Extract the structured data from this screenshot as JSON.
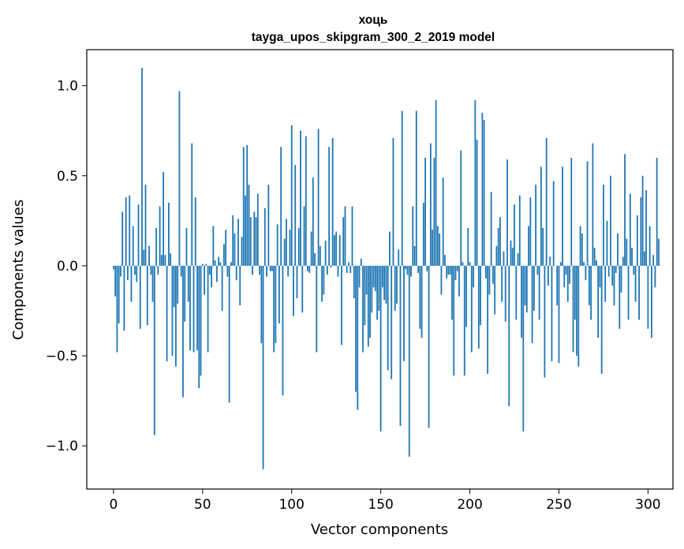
{
  "chart_data": {
    "type": "bar",
    "title": "хоць",
    "subtitle": "tayga_upos_skipgram_300_2_2019 model",
    "xlabel": "Vector components",
    "ylabel": "Components values",
    "xlim": [
      -15,
      314
    ],
    "ylim": [
      -1.24,
      1.2
    ],
    "xticks": [
      0,
      50,
      100,
      150,
      200,
      250,
      300
    ],
    "xtick_labels": [
      "0",
      "50",
      "100",
      "150",
      "200",
      "250",
      "300"
    ],
    "yticks": [
      -1.0,
      -0.5,
      0.0,
      0.5,
      1.0
    ],
    "ytick_labels": [
      "−1.0",
      "−0.5",
      "0.0",
      "0.5",
      "1.0"
    ],
    "bar_color": "#1f77b4",
    "grid": false,
    "series": [
      {
        "name": "components",
        "x_start": 0,
        "values": [
          -0.02,
          -0.17,
          -0.48,
          -0.32,
          -0.06,
          0.3,
          -0.36,
          0.38,
          -0.08,
          0.39,
          -0.2,
          0.22,
          -0.05,
          -0.09,
          0.34,
          -0.35,
          1.1,
          0.09,
          0.45,
          -0.33,
          0.11,
          -0.05,
          -0.2,
          -0.94,
          0.21,
          -0.05,
          0.33,
          0.06,
          0.52,
          0.06,
          -0.53,
          0.35,
          0.07,
          -0.5,
          -0.23,
          -0.56,
          -0.21,
          0.97,
          -0.06,
          -0.73,
          -0.31,
          0.21,
          -0.2,
          -0.47,
          0.68,
          -0.48,
          0.38,
          -0.47,
          -0.68,
          -0.61,
          0.01,
          -0.16,
          0.01,
          -0.48,
          -0.05,
          -0.12,
          0.22,
          0.03,
          -0.09,
          0.05,
          0.02,
          -0.25,
          0.12,
          0.2,
          -0.06,
          -0.76,
          0.02,
          0.28,
          0.18,
          -0.08,
          0.26,
          -0.22,
          0.16,
          0.66,
          0.39,
          0.67,
          0.45,
          0.27,
          -0.05,
          0.3,
          0.27,
          0.4,
          -0.05,
          -0.43,
          -1.13,
          0.32,
          -0.06,
          0.45,
          -0.03,
          -0.03,
          -0.48,
          -0.43,
          0.23,
          -0.32,
          0.66,
          -0.72,
          0.15,
          0.26,
          -0.06,
          0.2,
          0.78,
          -0.28,
          0.56,
          -0.18,
          0.21,
          0.75,
          -0.26,
          0.33,
          0.72,
          -0.03,
          -0.04,
          0.19,
          0.49,
          0.07,
          -0.48,
          0.76,
          0.11,
          -0.2,
          -0.16,
          0.14,
          -0.05,
          0.66,
          -0.01,
          0.71,
          0.17,
          0.19,
          -0.06,
          0.17,
          -0.44,
          0.27,
          0.33,
          -0.04,
          0.02,
          -0.04,
          0.33,
          -0.18,
          -0.7,
          -0.8,
          -0.12,
          0.04,
          -0.48,
          -0.33,
          -0.16,
          -0.45,
          -0.4,
          -0.26,
          -0.12,
          -0.14,
          -0.3,
          -0.25,
          -0.92,
          -0.12,
          -0.19,
          -0.21,
          -0.58,
          0.19,
          -0.63,
          0.71,
          -0.25,
          -0.21,
          0.09,
          -0.89,
          0.86,
          -0.53,
          -0.02,
          -0.05,
          -1.06,
          -0.06,
          0.33,
          0.11,
          0.86,
          -0.04,
          -0.35,
          -0.4,
          0.35,
          0.6,
          -0.03,
          -0.9,
          0.68,
          0.2,
          0.6,
          0.92,
          0.22,
          0.18,
          -0.16,
          0.49,
          0.06,
          -0.07,
          -0.05,
          -0.05,
          -0.3,
          -0.61,
          -0.08,
          -0.03,
          -0.17,
          0.64,
          0.02,
          -0.61,
          -0.34,
          0.21,
          0.02,
          -0.48,
          -0.12,
          0.92,
          0.7,
          -0.46,
          -0.33,
          0.85,
          0.81,
          -0.07,
          -0.6,
          -0.16,
          0.41,
          -0.1,
          -0.27,
          0.11,
          0.21,
          0.27,
          -0.2,
          0.08,
          -0.31,
          0.59,
          -0.78,
          0.14,
          0.1,
          0.34,
          -0.3,
          0.07,
          0.39,
          -0.4,
          -0.92,
          -0.22,
          -0.26,
          0.22,
          0.38,
          -0.43,
          -0.25,
          0.45,
          -0.05,
          -0.3,
          0.55,
          0.21,
          -0.62,
          0.71,
          -0.11,
          0.05,
          -0.53,
          0.47,
          0.0,
          -0.22,
          -0.54,
          0.02,
          0.55,
          -0.12,
          -0.05,
          -0.2,
          -0.1,
          0.6,
          -0.48,
          -0.3,
          -0.5,
          -0.56,
          0.22,
          0.18,
          0.02,
          -0.08,
          0.58,
          -0.22,
          -0.3,
          0.68,
          0.1,
          0.03,
          -0.4,
          -0.12,
          -0.6,
          0.45,
          -0.2,
          0.25,
          -0.06,
          0.5,
          -0.11,
          -0.22,
          -0.04,
          0.18,
          -0.35,
          -0.15,
          0.05,
          0.62,
          0.15,
          -0.3,
          0.4,
          0.1,
          -0.05,
          -0.2,
          0.28,
          -0.3,
          0.38,
          0.5,
          0.08,
          0.42,
          -0.35,
          0.22,
          -0.4,
          0.06,
          -0.12,
          0.6,
          0.15
        ]
      }
    ]
  }
}
